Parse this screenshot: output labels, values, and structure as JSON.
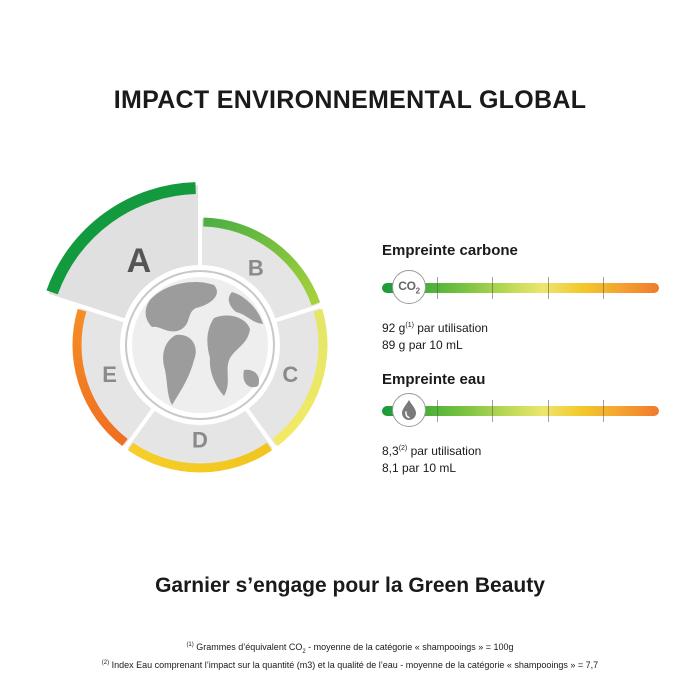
{
  "title": "IMPACT ENVIRONNEMENTAL GLOBAL",
  "wheel": {
    "grades": [
      "A",
      "B",
      "C",
      "D",
      "E"
    ],
    "selected": "A",
    "colors": {
      "A": "#149a3e",
      "B_start": "#4caf43",
      "B_end": "#a8d23a",
      "C_start": "#e3e667",
      "C_end": "#f2ea66",
      "D_start": "#f6cf2a",
      "D_end": "#f1c41e",
      "E_start": "#f58e25",
      "E_end": "#ef6f22",
      "segment_fill": "#e5e5e5",
      "globe": "#9c9c9c"
    },
    "icons": [
      "globe-icon"
    ]
  },
  "carbon": {
    "title": "Empreinte carbone",
    "icon": "co2-icon",
    "icon_text": "CO",
    "icon_sub": "2",
    "line1_value": "92 g",
    "line1_sup": "(1)",
    "line1_suffix": " par utilisation",
    "line2": "89 g par 10 mL"
  },
  "water": {
    "title": "Empreinte eau",
    "icon": "water-drop-icon",
    "line1_value": "8,3",
    "line1_sup": "(2)",
    "line1_suffix": " par utilisation",
    "line2": "8,1 par 10 mL"
  },
  "slogan": "Garnier s’engage pour la Green Beauty",
  "footnotes": {
    "note1_marker": "(1)",
    "note1_pre": " Grammes d’équivalent CO",
    "note1_sub": "2",
    "note1_post": " - moyenne de la catégorie « shampooings » = 100g",
    "note2_marker": "(2)",
    "note2_text": " Index Eau comprenant l’impact sur la quantité (m3) et la qualité de l’eau - moyenne de la catégorie « shampooings » = 7,7"
  }
}
